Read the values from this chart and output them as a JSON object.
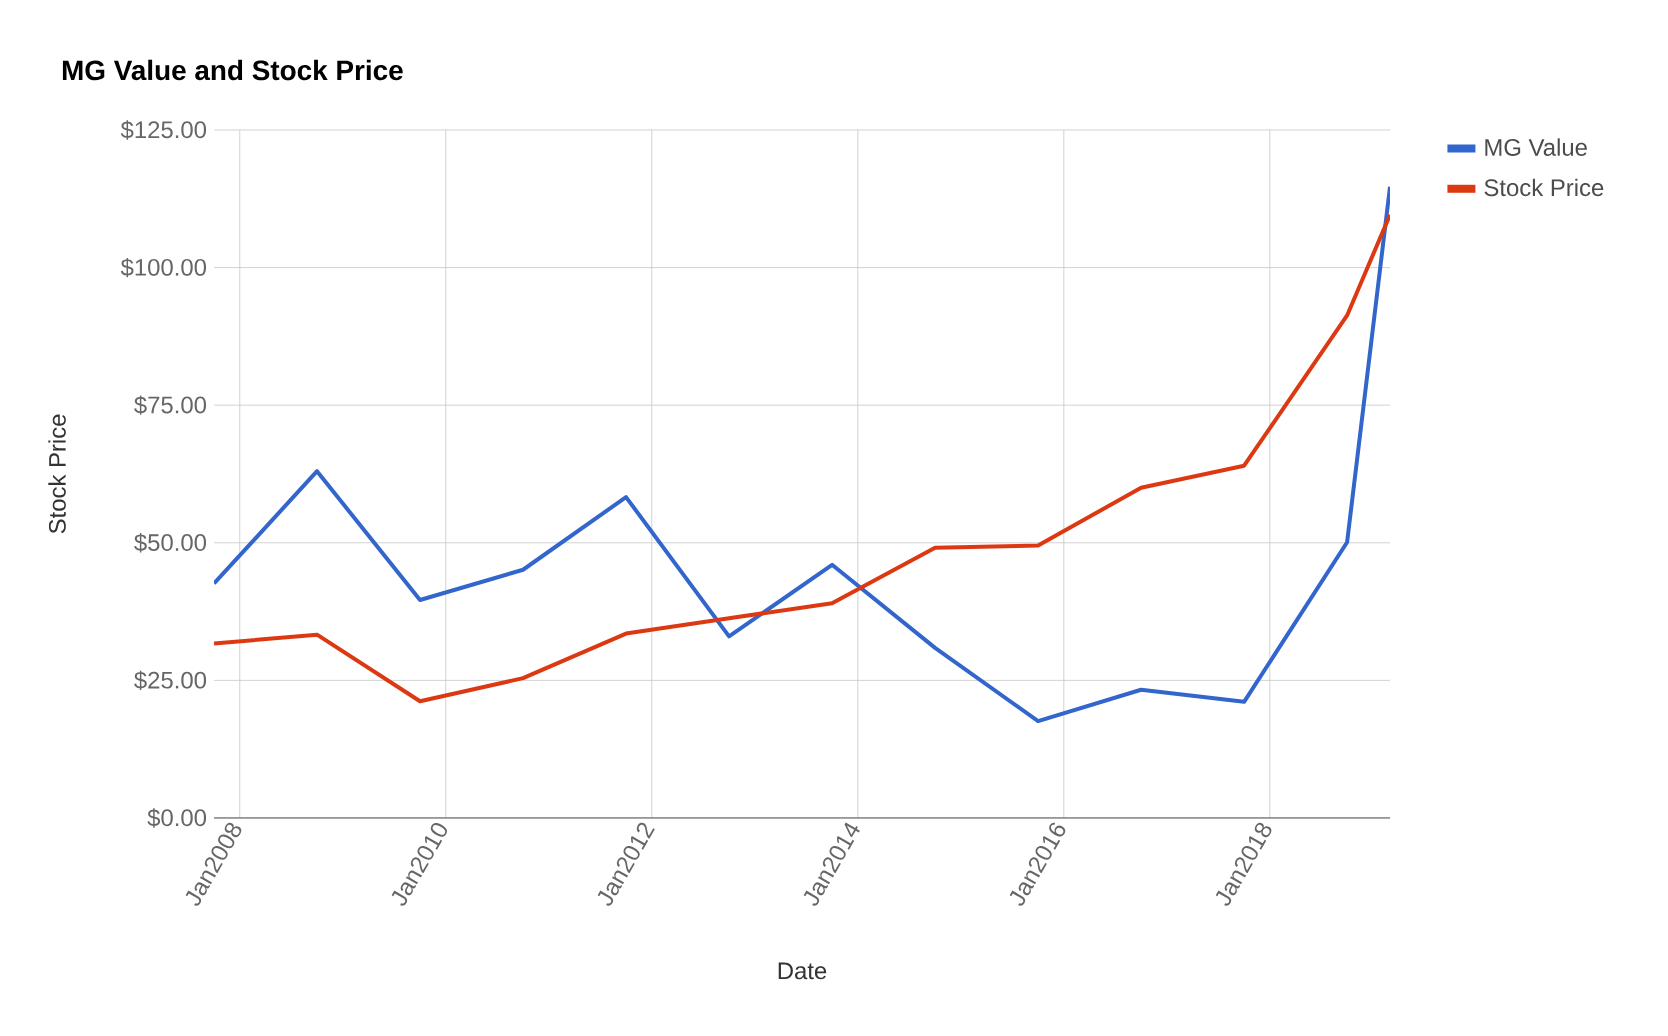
{
  "chart_data": {
    "type": "line",
    "title": "MG Value and Stock Price",
    "xlabel": "Date",
    "ylabel": "Stock Price",
    "x": [
      "2007-10",
      "2008-10",
      "2009-10",
      "2010-10",
      "2011-10",
      "2012-10",
      "2013-10",
      "2014-10",
      "2015-10",
      "2016-10",
      "2017-10",
      "2018-10",
      "2019-03"
    ],
    "series": [
      {
        "name": "MG Value",
        "color": "#3366cc",
        "values": [
          42.6,
          63.0,
          39.6,
          45.1,
          58.3,
          33.0,
          46.0,
          30.9,
          17.6,
          23.3,
          21.1,
          50.1,
          114.7
        ]
      },
      {
        "name": "Stock Price",
        "color": "#dc3912",
        "values": [
          31.7,
          33.3,
          21.2,
          25.4,
          33.5,
          36.3,
          39.0,
          49.1,
          49.5,
          60.0,
          64.0,
          91.3,
          109.6
        ]
      }
    ],
    "xlim": [
      "2007-10",
      "2019-03"
    ],
    "xticks": [
      {
        "value": "2008-01",
        "label": "Jan2008"
      },
      {
        "value": "2010-01",
        "label": "Jan2010"
      },
      {
        "value": "2012-01",
        "label": "Jan2012"
      },
      {
        "value": "2014-01",
        "label": "Jan2014"
      },
      {
        "value": "2016-01",
        "label": "Jan2016"
      },
      {
        "value": "2018-01",
        "label": "Jan2018"
      }
    ],
    "ylim": [
      0,
      125
    ],
    "yticks": [
      {
        "value": 0,
        "label": "$0.00"
      },
      {
        "value": 25,
        "label": "$25.00"
      },
      {
        "value": 50,
        "label": "$50.00"
      },
      {
        "value": 75,
        "label": "$75.00"
      },
      {
        "value": 100,
        "label": "$100.00"
      },
      {
        "value": 125,
        "label": "$125.00"
      }
    ],
    "grid": true,
    "legend": "right",
    "marker": "none",
    "line_style": "solid"
  }
}
